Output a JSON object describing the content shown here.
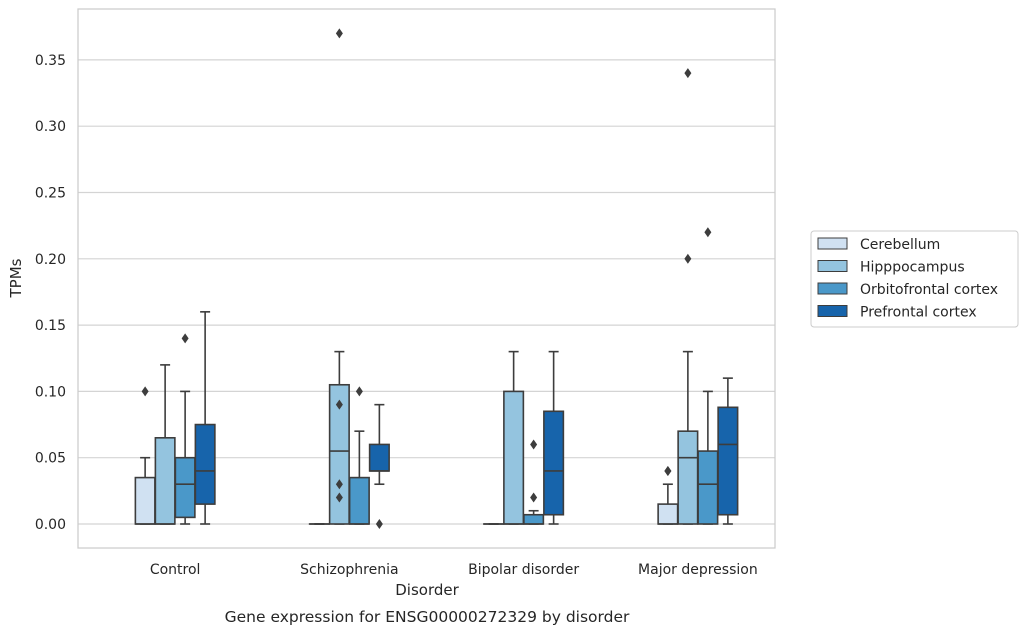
{
  "chart_data": {
    "type": "box",
    "caption": "Gene expression for ENSG00000272329 by disorder",
    "xlabel": "Disorder",
    "ylabel": "TPMs",
    "ylim": [
      -0.018,
      0.389
    ],
    "yticks": [
      "0.00",
      "0.05",
      "0.10",
      "0.15",
      "0.20",
      "0.25",
      "0.30",
      "0.35"
    ],
    "grid": "horizontal",
    "legend_position": "right",
    "categories": [
      "Control",
      "Schizophrenia",
      "Bipolar disorder",
      "Major depression"
    ],
    "series": [
      {
        "name": "Cerebellum",
        "color": "#d0e1f2",
        "boxes": [
          {
            "whisker_low": 0.0,
            "q1": 0.0,
            "median": 0.0,
            "q3": 0.035,
            "whisker_high": 0.05,
            "outliers": [
              0.1
            ]
          },
          {
            "whisker_low": 0.0,
            "q1": 0.0,
            "median": 0.0,
            "q3": 0.0,
            "whisker_high": 0.0,
            "outliers": []
          },
          {
            "whisker_low": 0.0,
            "q1": 0.0,
            "median": 0.0,
            "q3": 0.0,
            "whisker_high": 0.0,
            "outliers": []
          },
          {
            "whisker_low": 0.0,
            "q1": 0.0,
            "median": 0.0,
            "q3": 0.015,
            "whisker_high": 0.03,
            "outliers": [
              0.04,
              0.04
            ]
          }
        ]
      },
      {
        "name": "Hipppocampus",
        "color": "#94c4df",
        "boxes": [
          {
            "whisker_low": 0.0,
            "q1": 0.0,
            "median": 0.0,
            "q3": 0.065,
            "whisker_high": 0.12,
            "outliers": []
          },
          {
            "whisker_low": 0.0,
            "q1": 0.0,
            "median": 0.055,
            "q3": 0.105,
            "whisker_high": 0.13,
            "outliers": [
              0.09,
              0.03,
              0.02,
              0.37
            ]
          },
          {
            "whisker_low": 0.0,
            "q1": 0.0,
            "median": 0.0,
            "q3": 0.1,
            "whisker_high": 0.13,
            "outliers": []
          },
          {
            "whisker_low": 0.0,
            "q1": 0.0,
            "median": 0.05,
            "q3": 0.07,
            "whisker_high": 0.13,
            "outliers": [
              0.34,
              0.2
            ]
          }
        ]
      },
      {
        "name": "Orbitofrontal cortex",
        "color": "#4a98c9",
        "boxes": [
          {
            "whisker_low": 0.0,
            "q1": 0.005,
            "median": 0.03,
            "q3": 0.05,
            "whisker_high": 0.1,
            "outliers": [
              0.14
            ]
          },
          {
            "whisker_low": 0.0,
            "q1": 0.0,
            "median": 0.0,
            "q3": 0.035,
            "whisker_high": 0.07,
            "outliers": [
              0.1
            ]
          },
          {
            "whisker_low": 0.0,
            "q1": 0.0,
            "median": 0.0,
            "q3": 0.007,
            "whisker_high": 0.01,
            "outliers": [
              0.06,
              0.02
            ]
          },
          {
            "whisker_low": 0.0,
            "q1": 0.0,
            "median": 0.03,
            "q3": 0.055,
            "whisker_high": 0.1,
            "outliers": [
              0.22
            ]
          }
        ]
      },
      {
        "name": "Prefrontal cortex",
        "color": "#1764ab",
        "boxes": [
          {
            "whisker_low": 0.0,
            "q1": 0.015,
            "median": 0.04,
            "q3": 0.075,
            "whisker_high": 0.16,
            "outliers": []
          },
          {
            "whisker_low": 0.03,
            "q1": 0.04,
            "median": 0.04,
            "q3": 0.06,
            "whisker_high": 0.09,
            "outliers": [
              0.0
            ]
          },
          {
            "whisker_low": 0.0,
            "q1": 0.007,
            "median": 0.04,
            "q3": 0.085,
            "whisker_high": 0.13,
            "outliers": []
          },
          {
            "whisker_low": 0.0,
            "q1": 0.007,
            "median": 0.06,
            "q3": 0.088,
            "whisker_high": 0.11,
            "outliers": []
          }
        ]
      }
    ]
  }
}
